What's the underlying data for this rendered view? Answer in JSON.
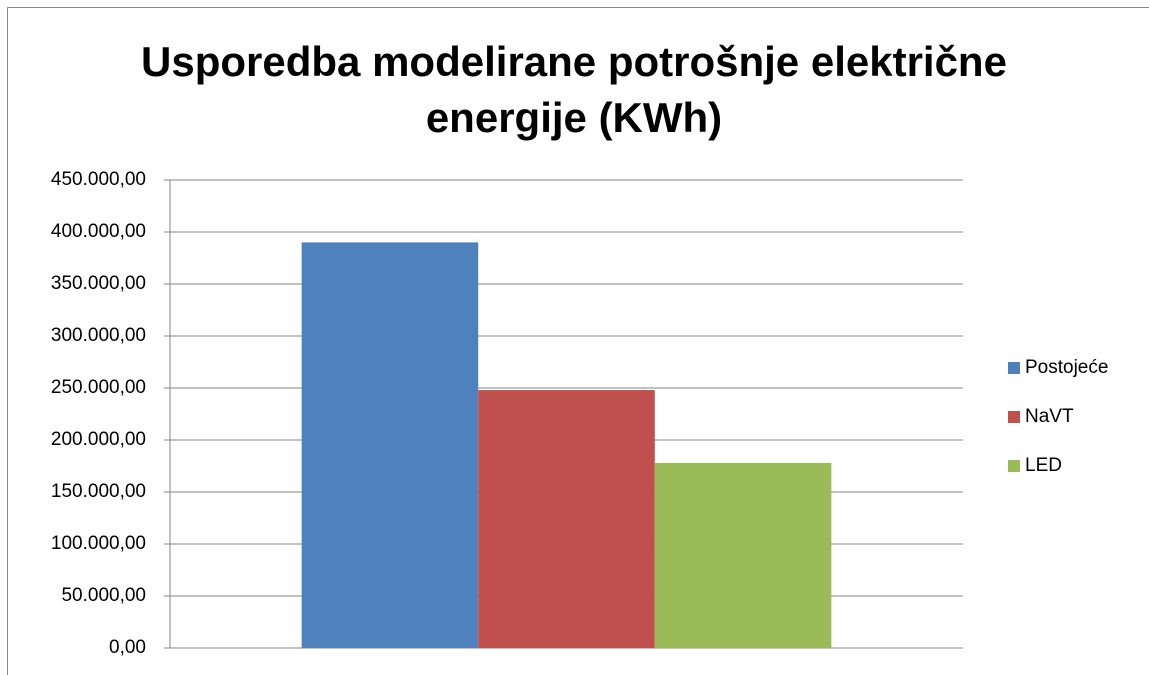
{
  "chart_data": {
    "type": "bar",
    "title": "Usporedba modelirane potrošnje električne energije (KWh)",
    "categories": [
      null
    ],
    "series": [
      {
        "name": "Postojeće",
        "color": "#4f81bd",
        "values": [
          390000
        ]
      },
      {
        "name": "NaVT",
        "color": "#c0504d",
        "values": [
          248000
        ]
      },
      {
        "name": "LED",
        "color": "#9bbb59",
        "values": [
          178000
        ]
      }
    ],
    "ylim": [
      0,
      450000
    ],
    "yticks": [
      {
        "value": 0,
        "label": "0,00"
      },
      {
        "value": 50000,
        "label": "50.000,00"
      },
      {
        "value": 100000,
        "label": "100.000,00"
      },
      {
        "value": 150000,
        "label": "150.000,00"
      },
      {
        "value": 200000,
        "label": "200.000,00"
      },
      {
        "value": 250000,
        "label": "250.000,00"
      },
      {
        "value": 300000,
        "label": "300.000,00"
      },
      {
        "value": 350000,
        "label": "350.000,00"
      },
      {
        "value": 400000,
        "label": "400.000,00"
      },
      {
        "value": 450000,
        "label": "450.000,00"
      }
    ],
    "grid": true,
    "legend": "right"
  }
}
